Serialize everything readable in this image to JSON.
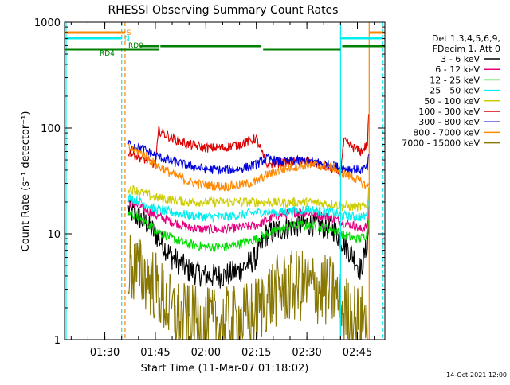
{
  "chart_data": {
    "type": "line",
    "title": "RHESSI Observing Summary Count Rates",
    "xlabel": "Start Time (11-Mar-07 01:18:02)",
    "ylabel": "Count Rate (s⁻¹ detector⁻¹)",
    "xlim": [
      "01:18:02",
      "02:53:10"
    ],
    "ylim": [
      1,
      1000
    ],
    "yscale": "log",
    "x_ticks": [
      "01:30",
      "01:45",
      "02:00",
      "02:15",
      "02:30",
      "02:45"
    ],
    "y_ticks": [
      "1",
      "10",
      "100",
      "1000"
    ],
    "legend_header": [
      "Det 1,3,4,5,6,9,",
      "FDecim 1, Att 0"
    ],
    "legend_position": "right",
    "footer_date": "14-Oct-2021 12:00",
    "series": [
      {
        "name": "3 - 6 keV",
        "color": "#000000",
        "x": [
          "01:37:00",
          "01:39:00",
          "01:42:00",
          "01:45:00",
          "01:50:00",
          "01:55:00",
          "02:00:00",
          "02:05:00",
          "02:10:00",
          "02:15:00",
          "02:18:00",
          "02:22:00",
          "02:26:00",
          "02:30:00",
          "02:34:00",
          "02:38:00",
          "02:40:00",
          "02:44:00",
          "02:46:00",
          "02:48:00",
          "02:48:30"
        ],
        "y": [
          17,
          15,
          13,
          10,
          6,
          4.5,
          4,
          4,
          4.5,
          6,
          10,
          11,
          12,
          12.5,
          12,
          11,
          9,
          6,
          4.5,
          8,
          16
        ]
      },
      {
        "name": "6 - 12 keV",
        "color": "#e4007f",
        "x": [
          "01:37:00",
          "01:39:00",
          "01:42:00",
          "01:45:00",
          "01:50:00",
          "01:55:00",
          "02:00:00",
          "02:05:00",
          "02:10:00",
          "02:15:00",
          "02:18:00",
          "02:22:00",
          "02:26:00",
          "02:30:00",
          "02:34:00",
          "02:38:00",
          "02:40:00",
          "02:44:00",
          "02:46:00",
          "02:48:00",
          "02:48:30"
        ],
        "y": [
          20,
          19,
          17,
          15,
          13,
          11.5,
          11,
          11,
          11.5,
          12,
          13.5,
          15,
          16,
          16,
          15,
          14,
          13,
          12,
          11,
          12,
          20
        ]
      },
      {
        "name": "12 - 25 keV",
        "color": "#00dd00",
        "x": [
          "01:37:00",
          "01:39:00",
          "01:42:00",
          "01:45:00",
          "01:50:00",
          "01:55:00",
          "02:00:00",
          "02:05:00",
          "02:10:00",
          "02:15:00",
          "02:18:00",
          "02:22:00",
          "02:26:00",
          "02:30:00",
          "02:34:00",
          "02:38:00",
          "02:40:00",
          "02:44:00",
          "02:46:00",
          "02:48:00",
          "02:48:30"
        ],
        "y": [
          16,
          15,
          13,
          11,
          9,
          8,
          7.5,
          7.5,
          8,
          9,
          10,
          11,
          12,
          12,
          11.5,
          11,
          10,
          9,
          9,
          10,
          18
        ]
      },
      {
        "name": "25 - 50 keV",
        "color": "#00eeee",
        "x": [
          "01:37:00",
          "01:39:00",
          "01:42:00",
          "01:45:00",
          "01:50:00",
          "01:55:00",
          "02:00:00",
          "02:05:00",
          "02:10:00",
          "02:15:00",
          "02:18:00",
          "02:22:00",
          "02:26:00",
          "02:30:00",
          "02:34:00",
          "02:38:00",
          "02:40:00",
          "02:44:00",
          "02:46:00",
          "02:48:00",
          "02:48:30"
        ],
        "y": [
          22,
          21,
          19,
          17,
          16,
          15,
          14.5,
          14.5,
          15,
          16,
          16,
          16,
          16.5,
          17,
          16.5,
          16,
          15,
          14.5,
          14.5,
          15,
          25
        ]
      },
      {
        "name": "50 - 100 keV",
        "color": "#cccc00",
        "x": [
          "01:37:00",
          "01:39:00",
          "01:42:00",
          "01:45:00",
          "01:50:00",
          "01:55:00",
          "02:00:00",
          "02:05:00",
          "02:10:00",
          "02:15:00",
          "02:18:00",
          "02:22:00",
          "02:26:00",
          "02:30:00",
          "02:34:00",
          "02:38:00",
          "02:40:00",
          "02:44:00",
          "02:46:00",
          "02:48:00",
          "02:48:30"
        ],
        "y": [
          27,
          26,
          24,
          22,
          21,
          20,
          20,
          20,
          20,
          20,
          20,
          19.5,
          20,
          20,
          19.5,
          19,
          18.5,
          18,
          18,
          18.5,
          30
        ]
      },
      {
        "name": "100 - 300 keV",
        "color": "#dd0000",
        "x": [
          "01:37:00",
          "01:39:00",
          "01:42:00",
          "01:45:00",
          "01:46:00",
          "01:50:00",
          "01:55:00",
          "02:00:00",
          "02:05:00",
          "02:10:00",
          "02:15:00",
          "02:18:00",
          "02:22:00",
          "02:26:00",
          "02:30:00",
          "02:34:00",
          "02:38:00",
          "02:40:00",
          "02:41:00",
          "02:44:00",
          "02:46:00",
          "02:48:00",
          "02:48:30"
        ],
        "y": [
          60,
          55,
          50,
          45,
          95,
          80,
          70,
          65,
          65,
          70,
          80,
          45,
          47,
          48,
          48,
          45,
          40,
          38,
          75,
          65,
          60,
          70,
          175
        ]
      },
      {
        "name": "300 - 800 keV",
        "color": "#0000dd",
        "x": [
          "01:37:00",
          "01:39:00",
          "01:42:00",
          "01:45:00",
          "01:50:00",
          "01:55:00",
          "02:00:00",
          "02:05:00",
          "02:10:00",
          "02:15:00",
          "02:18:00",
          "02:22:00",
          "02:26:00",
          "02:30:00",
          "02:34:00",
          "02:38:00",
          "02:40:00",
          "02:44:00",
          "02:46:00",
          "02:48:00",
          "02:48:30"
        ],
        "y": [
          72,
          68,
          62,
          55,
          48,
          44,
          41,
          40,
          41,
          45,
          52,
          48,
          49,
          49,
          47,
          44,
          42,
          41,
          40,
          42,
          60
        ]
      },
      {
        "name": "800 - 7000 keV",
        "color": "#ff8800",
        "x": [
          "01:37:00",
          "01:39:00",
          "01:42:00",
          "01:45:00",
          "01:50:00",
          "01:55:00",
          "02:00:00",
          "02:05:00",
          "02:10:00",
          "02:15:00",
          "02:18:00",
          "02:22:00",
          "02:26:00",
          "02:30:00",
          "02:34:00",
          "02:38:00",
          "02:40:00",
          "02:44:00",
          "02:46:00",
          "02:48:00",
          "02:48:30"
        ],
        "y": [
          65,
          62,
          55,
          45,
          37,
          31,
          29,
          28,
          29,
          31,
          36,
          40,
          43,
          45,
          44,
          42,
          38,
          34,
          31,
          28,
          30
        ]
      },
      {
        "name": "7000 - 15000 keV",
        "color": "#887700",
        "x": [
          "01:37:00",
          "01:40:00",
          "01:43:00",
          "01:45:00",
          "01:47:00",
          "01:50:00",
          "01:55:00",
          "02:00:00",
          "02:05:00",
          "02:10:00",
          "02:15:00",
          "02:18:00",
          "02:22:00",
          "02:26:00",
          "02:30:00",
          "02:34:00",
          "02:38:00",
          "02:40:00",
          "02:44:00",
          "02:46:00",
          "02:48:00"
        ],
        "y": [
          5,
          4.5,
          3.8,
          3.2,
          2.5,
          1.8,
          1.5,
          1.4,
          1.4,
          1.5,
          1.8,
          2.5,
          3,
          3.2,
          3.2,
          3,
          2.8,
          2,
          1.6,
          1.5,
          1.6
        ]
      }
    ],
    "vertical_markers": [
      {
        "time": "01:18:30",
        "color": "#00eeee",
        "style": "solid"
      },
      {
        "time": "01:35:00",
        "color": "#00eeee",
        "style": "dashed"
      },
      {
        "time": "01:36:00",
        "color": "#ff8800",
        "style": "dashed"
      },
      {
        "time": "02:40:00",
        "color": "#00eeee",
        "style": "solid"
      },
      {
        "time": "02:48:30",
        "color": "#ff8800",
        "style": "solid"
      },
      {
        "time": "02:52:30",
        "color": "#00eeee",
        "style": "dashed"
      }
    ],
    "status_bars": [
      {
        "label": "S",
        "color": "#ff8800",
        "row": 1,
        "segments": [
          [
            "01:18:02",
            "01:36:00"
          ],
          [
            "02:48:30",
            "02:53:10"
          ]
        ]
      },
      {
        "label": "N",
        "color": "#00eeee",
        "row": 2,
        "segments": [
          [
            "01:18:02",
            "01:35:00"
          ],
          [
            "02:40:00",
            "02:52:30"
          ]
        ]
      },
      {
        "label": "RD0",
        "color": "#007f00",
        "row": 3,
        "segments": [
          [
            "01:40:30",
            "01:46:00"
          ],
          [
            "01:46:30",
            "02:16:30"
          ],
          [
            "02:40:30",
            "02:53:10"
          ]
        ]
      },
      {
        "label": "RD4",
        "color": "#007f00",
        "row": 4,
        "segments": [
          [
            "01:18:02",
            "01:46:00"
          ],
          [
            "02:17:00",
            "02:40:00"
          ]
        ]
      }
    ]
  }
}
